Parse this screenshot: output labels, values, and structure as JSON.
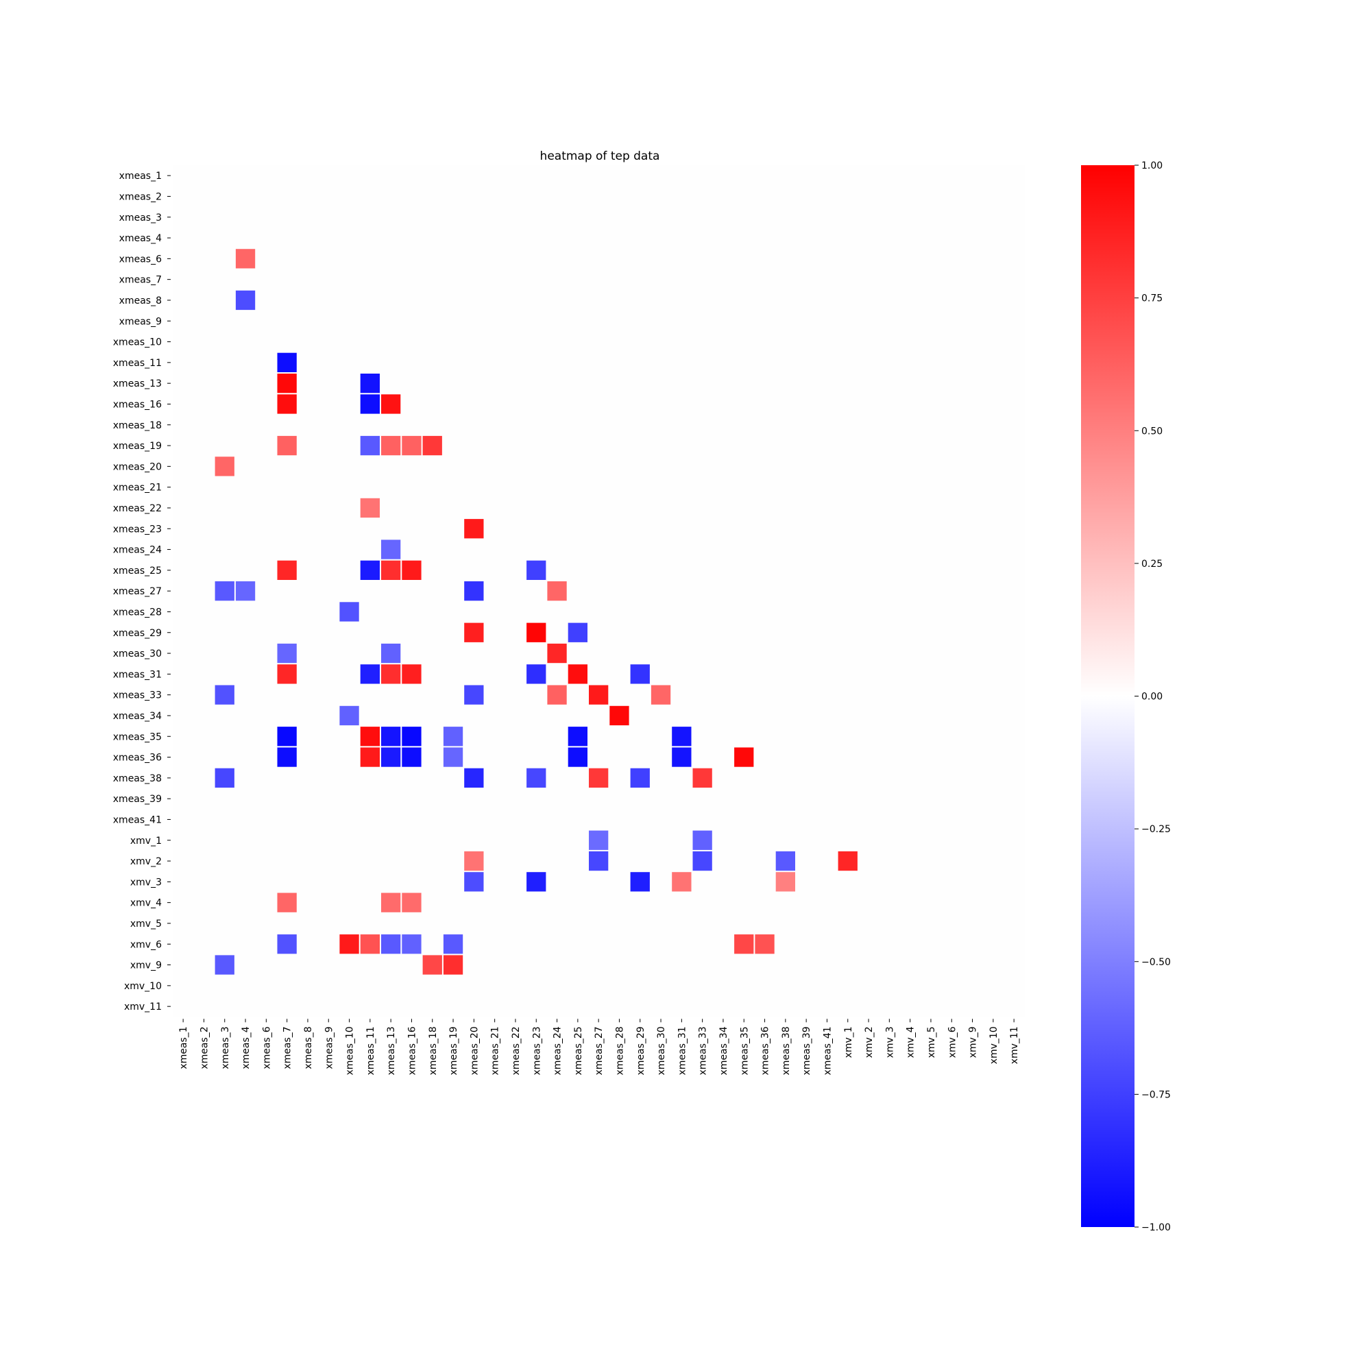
{
  "chart_data": {
    "type": "heatmap",
    "title": "heatmap of tep data",
    "xlabel": "",
    "ylabel": "",
    "colormap": "bwr",
    "colors": {
      "low": "#0000ff",
      "mid": "#ffffff",
      "high": "#ff0000"
    },
    "vmin": -1.0,
    "vmax": 1.0,
    "mask": "upper triangle and |value| below threshold are blank",
    "labels": [
      "xmeas_1",
      "xmeas_2",
      "xmeas_3",
      "xmeas_4",
      "xmeas_6",
      "xmeas_7",
      "xmeas_8",
      "xmeas_9",
      "xmeas_10",
      "xmeas_11",
      "xmeas_13",
      "xmeas_16",
      "xmeas_18",
      "xmeas_19",
      "xmeas_20",
      "xmeas_21",
      "xmeas_22",
      "xmeas_23",
      "xmeas_24",
      "xmeas_25",
      "xmeas_27",
      "xmeas_28",
      "xmeas_29",
      "xmeas_30",
      "xmeas_31",
      "xmeas_33",
      "xmeas_34",
      "xmeas_35",
      "xmeas_36",
      "xmeas_38",
      "xmeas_39",
      "xmeas_41",
      "xmv_1",
      "xmv_2",
      "xmv_3",
      "xmv_4",
      "xmv_5",
      "xmv_6",
      "xmv_9",
      "xmv_10",
      "xmv_11"
    ],
    "cells": [
      {
        "row": "xmeas_6",
        "col": "xmeas_4",
        "value": 0.6
      },
      {
        "row": "xmeas_8",
        "col": "xmeas_4",
        "value": -0.7
      },
      {
        "row": "xmeas_11",
        "col": "xmeas_7",
        "value": -0.95
      },
      {
        "row": "xmeas_13",
        "col": "xmeas_7",
        "value": 0.97
      },
      {
        "row": "xmeas_13",
        "col": "xmeas_11",
        "value": -0.93
      },
      {
        "row": "xmeas_16",
        "col": "xmeas_7",
        "value": 0.95
      },
      {
        "row": "xmeas_16",
        "col": "xmeas_11",
        "value": -0.95
      },
      {
        "row": "xmeas_16",
        "col": "xmeas_13",
        "value": 0.93
      },
      {
        "row": "xmeas_19",
        "col": "xmeas_7",
        "value": 0.62
      },
      {
        "row": "xmeas_19",
        "col": "xmeas_11",
        "value": -0.65
      },
      {
        "row": "xmeas_19",
        "col": "xmeas_13",
        "value": 0.62
      },
      {
        "row": "xmeas_19",
        "col": "xmeas_16",
        "value": 0.62
      },
      {
        "row": "xmeas_19",
        "col": "xmeas_18",
        "value": 0.78
      },
      {
        "row": "xmeas_20",
        "col": "xmeas_3",
        "value": 0.6
      },
      {
        "row": "xmeas_22",
        "col": "xmeas_11",
        "value": 0.55
      },
      {
        "row": "xmeas_23",
        "col": "xmeas_20",
        "value": 0.9
      },
      {
        "row": "xmeas_24",
        "col": "xmeas_13",
        "value": -0.6
      },
      {
        "row": "xmeas_25",
        "col": "xmeas_7",
        "value": 0.85
      },
      {
        "row": "xmeas_25",
        "col": "xmeas_11",
        "value": -0.9
      },
      {
        "row": "xmeas_25",
        "col": "xmeas_13",
        "value": 0.82
      },
      {
        "row": "xmeas_25",
        "col": "xmeas_16",
        "value": 0.9
      },
      {
        "row": "xmeas_25",
        "col": "xmeas_23",
        "value": -0.75
      },
      {
        "row": "xmeas_27",
        "col": "xmeas_3",
        "value": -0.65
      },
      {
        "row": "xmeas_27",
        "col": "xmeas_4",
        "value": -0.6
      },
      {
        "row": "xmeas_27",
        "col": "xmeas_20",
        "value": -0.8
      },
      {
        "row": "xmeas_27",
        "col": "xmeas_24",
        "value": 0.6
      },
      {
        "row": "xmeas_28",
        "col": "xmeas_10",
        "value": -0.68
      },
      {
        "row": "xmeas_29",
        "col": "xmeas_20",
        "value": 0.88
      },
      {
        "row": "xmeas_29",
        "col": "xmeas_23",
        "value": 0.98
      },
      {
        "row": "xmeas_29",
        "col": "xmeas_25",
        "value": -0.75
      },
      {
        "row": "xmeas_30",
        "col": "xmeas_7",
        "value": -0.6
      },
      {
        "row": "xmeas_30",
        "col": "xmeas_13",
        "value": -0.62
      },
      {
        "row": "xmeas_30",
        "col": "xmeas_24",
        "value": 0.85
      },
      {
        "row": "xmeas_31",
        "col": "xmeas_7",
        "value": 0.85
      },
      {
        "row": "xmeas_31",
        "col": "xmeas_11",
        "value": -0.88
      },
      {
        "row": "xmeas_31",
        "col": "xmeas_13",
        "value": 0.82
      },
      {
        "row": "xmeas_31",
        "col": "xmeas_16",
        "value": 0.88
      },
      {
        "row": "xmeas_31",
        "col": "xmeas_23",
        "value": -0.82
      },
      {
        "row": "xmeas_31",
        "col": "xmeas_25",
        "value": 0.95
      },
      {
        "row": "xmeas_31",
        "col": "xmeas_29",
        "value": -0.8
      },
      {
        "row": "xmeas_33",
        "col": "xmeas_3",
        "value": -0.68
      },
      {
        "row": "xmeas_33",
        "col": "xmeas_20",
        "value": -0.72
      },
      {
        "row": "xmeas_33",
        "col": "xmeas_24",
        "value": 0.62
      },
      {
        "row": "xmeas_33",
        "col": "xmeas_27",
        "value": 0.9
      },
      {
        "row": "xmeas_33",
        "col": "xmeas_30",
        "value": 0.6
      },
      {
        "row": "xmeas_34",
        "col": "xmeas_10",
        "value": -0.62
      },
      {
        "row": "xmeas_34",
        "col": "xmeas_28",
        "value": 0.97
      },
      {
        "row": "xmeas_35",
        "col": "xmeas_7",
        "value": -0.97
      },
      {
        "row": "xmeas_35",
        "col": "xmeas_11",
        "value": 0.95
      },
      {
        "row": "xmeas_35",
        "col": "xmeas_13",
        "value": -0.92
      },
      {
        "row": "xmeas_35",
        "col": "xmeas_16",
        "value": -0.97
      },
      {
        "row": "xmeas_35",
        "col": "xmeas_19",
        "value": -0.62
      },
      {
        "row": "xmeas_35",
        "col": "xmeas_25",
        "value": -0.95
      },
      {
        "row": "xmeas_35",
        "col": "xmeas_31",
        "value": -0.92
      },
      {
        "row": "xmeas_36",
        "col": "xmeas_7",
        "value": -0.95
      },
      {
        "row": "xmeas_36",
        "col": "xmeas_11",
        "value": 0.9
      },
      {
        "row": "xmeas_36",
        "col": "xmeas_13",
        "value": -0.9
      },
      {
        "row": "xmeas_36",
        "col": "xmeas_16",
        "value": -0.95
      },
      {
        "row": "xmeas_36",
        "col": "xmeas_19",
        "value": -0.6
      },
      {
        "row": "xmeas_36",
        "col": "xmeas_25",
        "value": -0.95
      },
      {
        "row": "xmeas_36",
        "col": "xmeas_31",
        "value": -0.92
      },
      {
        "row": "xmeas_36",
        "col": "xmeas_35",
        "value": 0.97
      },
      {
        "row": "xmeas_38",
        "col": "xmeas_3",
        "value": -0.72
      },
      {
        "row": "xmeas_38",
        "col": "xmeas_20",
        "value": -0.85
      },
      {
        "row": "xmeas_38",
        "col": "xmeas_23",
        "value": -0.72
      },
      {
        "row": "xmeas_38",
        "col": "xmeas_27",
        "value": 0.78
      },
      {
        "row": "xmeas_38",
        "col": "xmeas_29",
        "value": -0.75
      },
      {
        "row": "xmeas_38",
        "col": "xmeas_33",
        "value": 0.78
      },
      {
        "row": "xmv_1",
        "col": "xmeas_27",
        "value": -0.58
      },
      {
        "row": "xmv_1",
        "col": "xmeas_33",
        "value": -0.62
      },
      {
        "row": "xmv_2",
        "col": "xmeas_20",
        "value": 0.55
      },
      {
        "row": "xmv_2",
        "col": "xmeas_27",
        "value": -0.72
      },
      {
        "row": "xmv_2",
        "col": "xmeas_33",
        "value": -0.72
      },
      {
        "row": "xmv_2",
        "col": "xmeas_38",
        "value": -0.65
      },
      {
        "row": "xmv_2",
        "col": "xmv_1",
        "value": 0.85
      },
      {
        "row": "xmv_3",
        "col": "xmeas_20",
        "value": -0.7
      },
      {
        "row": "xmv_3",
        "col": "xmeas_23",
        "value": -0.88
      },
      {
        "row": "xmv_3",
        "col": "xmeas_29",
        "value": -0.88
      },
      {
        "row": "xmv_3",
        "col": "xmeas_31",
        "value": 0.55
      },
      {
        "row": "xmv_3",
        "col": "xmeas_38",
        "value": 0.5
      },
      {
        "row": "xmv_4",
        "col": "xmeas_7",
        "value": 0.6
      },
      {
        "row": "xmv_4",
        "col": "xmeas_13",
        "value": 0.58
      },
      {
        "row": "xmv_4",
        "col": "xmeas_16",
        "value": 0.58
      },
      {
        "row": "xmv_6",
        "col": "xmeas_7",
        "value": -0.68
      },
      {
        "row": "xmv_6",
        "col": "xmeas_10",
        "value": 0.9
      },
      {
        "row": "xmv_6",
        "col": "xmeas_11",
        "value": 0.68
      },
      {
        "row": "xmv_6",
        "col": "xmeas_13",
        "value": -0.65
      },
      {
        "row": "xmv_6",
        "col": "xmeas_16",
        "value": -0.62
      },
      {
        "row": "xmv_6",
        "col": "xmeas_19",
        "value": -0.65
      },
      {
        "row": "xmv_6",
        "col": "xmeas_35",
        "value": 0.72
      },
      {
        "row": "xmv_6",
        "col": "xmeas_36",
        "value": 0.68
      },
      {
        "row": "xmv_9",
        "col": "xmeas_3",
        "value": -0.65
      },
      {
        "row": "xmv_9",
        "col": "xmeas_18",
        "value": 0.72
      },
      {
        "row": "xmv_9",
        "col": "xmeas_19",
        "value": 0.82
      }
    ],
    "colorbar": {
      "ticks": [
        1.0,
        0.75,
        0.5,
        0.25,
        0.0,
        -0.25,
        -0.5,
        -0.75,
        -1.0
      ],
      "tick_labels": [
        "1.00",
        "0.75",
        "0.50",
        "0.25",
        "0.00",
        "−0.25",
        "−0.50",
        "−0.75",
        "−1.00"
      ]
    }
  }
}
